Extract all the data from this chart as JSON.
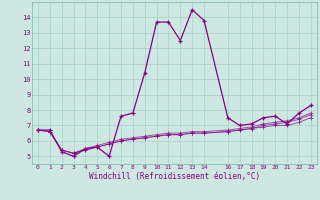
{
  "xlabel": "Windchill (Refroidissement éolien,°C)",
  "bg_color": "#cce8e0",
  "line_color": "#880088",
  "xlim": [
    -0.5,
    23.5
  ],
  "ylim": [
    4.5,
    15.0
  ],
  "yticks": [
    5,
    6,
    7,
    8,
    9,
    10,
    11,
    12,
    13,
    14
  ],
  "xticks": [
    0,
    1,
    2,
    3,
    4,
    5,
    6,
    7,
    8,
    9,
    10,
    11,
    12,
    13,
    14,
    16,
    17,
    18,
    19,
    20,
    21,
    22,
    23
  ],
  "main_series": [
    [
      0,
      6.7
    ],
    [
      1,
      6.7
    ],
    [
      2,
      5.3
    ],
    [
      3,
      5.0
    ],
    [
      4,
      5.5
    ],
    [
      5,
      5.6
    ],
    [
      6,
      5.0
    ],
    [
      7,
      7.6
    ],
    [
      8,
      7.8
    ],
    [
      9,
      10.4
    ],
    [
      10,
      13.7
    ],
    [
      11,
      13.7
    ],
    [
      12,
      12.5
    ],
    [
      13,
      14.5
    ],
    [
      14,
      13.8
    ],
    [
      16,
      7.5
    ],
    [
      17,
      7.0
    ],
    [
      18,
      7.1
    ],
    [
      19,
      7.5
    ],
    [
      20,
      7.6
    ],
    [
      21,
      7.1
    ],
    [
      22,
      7.8
    ],
    [
      23,
      8.3
    ]
  ],
  "extra_lines": [
    [
      [
        0,
        6.7
      ],
      [
        1,
        6.6
      ],
      [
        2,
        5.4
      ],
      [
        3,
        5.2
      ],
      [
        4,
        5.4
      ],
      [
        5,
        5.6
      ],
      [
        6,
        5.8
      ],
      [
        7,
        6.0
      ],
      [
        8,
        6.1
      ],
      [
        9,
        6.2
      ],
      [
        10,
        6.3
      ],
      [
        11,
        6.4
      ],
      [
        12,
        6.4
      ],
      [
        13,
        6.5
      ],
      [
        14,
        6.5
      ],
      [
        16,
        6.6
      ],
      [
        17,
        6.7
      ],
      [
        18,
        6.8
      ],
      [
        19,
        6.9
      ],
      [
        20,
        7.0
      ],
      [
        21,
        7.0
      ],
      [
        22,
        7.2
      ],
      [
        23,
        7.5
      ]
    ],
    [
      [
        0,
        6.7
      ],
      [
        1,
        6.6
      ],
      [
        2,
        5.4
      ],
      [
        3,
        5.2
      ],
      [
        4,
        5.4
      ],
      [
        5,
        5.6
      ],
      [
        6,
        5.8
      ],
      [
        7,
        6.0
      ],
      [
        8,
        6.1
      ],
      [
        9,
        6.2
      ],
      [
        10,
        6.3
      ],
      [
        11,
        6.4
      ],
      [
        12,
        6.4
      ],
      [
        13,
        6.5
      ],
      [
        14,
        6.5
      ],
      [
        16,
        6.6
      ],
      [
        17,
        6.7
      ],
      [
        18,
        6.8
      ],
      [
        19,
        7.0
      ],
      [
        20,
        7.1
      ],
      [
        21,
        7.2
      ],
      [
        22,
        7.4
      ],
      [
        23,
        7.7
      ]
    ],
    [
      [
        0,
        6.7
      ],
      [
        1,
        6.6
      ],
      [
        2,
        5.4
      ],
      [
        3,
        5.2
      ],
      [
        4,
        5.5
      ],
      [
        5,
        5.7
      ],
      [
        6,
        5.9
      ],
      [
        7,
        6.1
      ],
      [
        8,
        6.2
      ],
      [
        9,
        6.3
      ],
      [
        10,
        6.4
      ],
      [
        11,
        6.5
      ],
      [
        12,
        6.5
      ],
      [
        13,
        6.6
      ],
      [
        14,
        6.6
      ],
      [
        16,
        6.7
      ],
      [
        17,
        6.8
      ],
      [
        18,
        6.9
      ],
      [
        19,
        7.1
      ],
      [
        20,
        7.2
      ],
      [
        21,
        7.3
      ],
      [
        22,
        7.5
      ],
      [
        23,
        7.8
      ]
    ]
  ]
}
